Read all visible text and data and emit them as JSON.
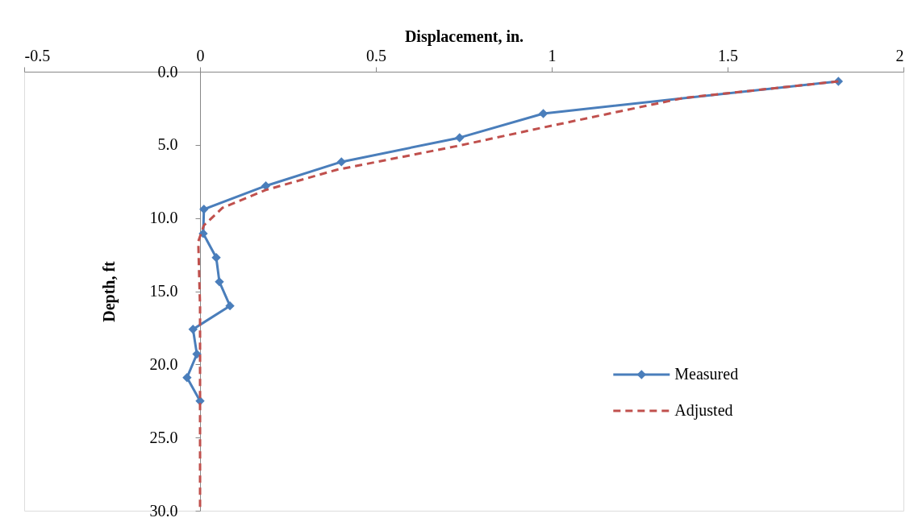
{
  "chart_data": {
    "type": "line",
    "xlabel": "Displacement, in.",
    "ylabel": "Depth, ft",
    "xlim": [
      -0.5,
      2
    ],
    "xticks": [
      -0.5,
      0,
      0.5,
      1,
      1.5,
      2
    ],
    "ylim": [
      30,
      0
    ],
    "yticks": [
      {
        "value": 0,
        "label": "0.0"
      },
      {
        "value": 5,
        "label": "5.0"
      },
      {
        "value": 10,
        "label": "10.0"
      },
      {
        "value": 15,
        "label": "15.0"
      },
      {
        "value": 20,
        "label": "20.0"
      },
      {
        "value": 25,
        "label": "25.0"
      },
      {
        "value": 30,
        "label": "30.0"
      }
    ],
    "grid": false,
    "legend": "right",
    "series": [
      {
        "name": "Measured",
        "color": "#4a7ebb",
        "marker": "diamond",
        "line_style": "solid",
        "x": [
          1.815,
          0.976,
          0.738,
          0.402,
          0.187,
          0.011,
          0.009,
          0.046,
          0.055,
          0.085,
          -0.02,
          -0.009,
          -0.037,
          0.0
        ],
        "values": [
          0.66,
          2.86,
          4.51,
          6.16,
          7.8,
          9.4,
          11.06,
          12.7,
          14.36,
          16.0,
          17.6,
          19.3,
          20.9,
          22.5
        ]
      },
      {
        "name": "Adjusted",
        "color": "#c0504d",
        "marker": "none",
        "line_style": "dashed",
        "x": [
          1.815,
          1.376,
          0.978,
          0.727,
          0.389,
          0.185,
          0.064,
          0.011,
          -0.005,
          -0.003,
          0.0,
          0.0
        ],
        "values": [
          0.66,
          1.79,
          3.8,
          5.1,
          6.7,
          8.1,
          9.3,
          10.5,
          11.6,
          13.5,
          16.0,
          30.0
        ]
      }
    ]
  }
}
